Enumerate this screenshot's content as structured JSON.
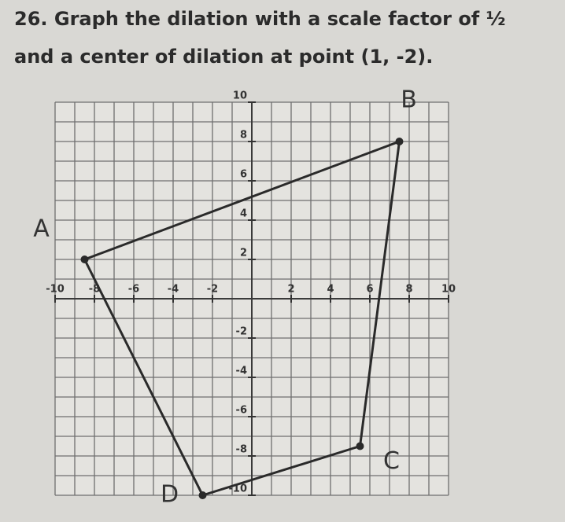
{
  "question": {
    "lines": [
      "26. Graph the dilation with a scale factor of ½",
      "and a center of dilation at point (1, -2)."
    ]
  },
  "chart_data": {
    "type": "polygon",
    "point_labels": [
      "A",
      "B",
      "C",
      "D"
    ],
    "x": [
      -8.5,
      7.5,
      5.5,
      -2.5
    ],
    "values": [
      2,
      8,
      -7.5,
      -10
    ],
    "color": "#2a2a2a",
    "xlim": [
      -10,
      10
    ],
    "ylim": [
      -10,
      10
    ],
    "xticks": [
      -10,
      -8,
      -6,
      -4,
      -2,
      2,
      4,
      6,
      8,
      10
    ],
    "yticks": [
      10,
      8,
      6,
      4,
      2,
      -2,
      -4,
      -6,
      -8,
      -10
    ],
    "grid": [
      -10,
      -9,
      -8,
      -7,
      -6,
      -5,
      -4,
      -3,
      -2,
      -1,
      0,
      1,
      2,
      3,
      4,
      5,
      6,
      7,
      8,
      9,
      10
    ]
  }
}
